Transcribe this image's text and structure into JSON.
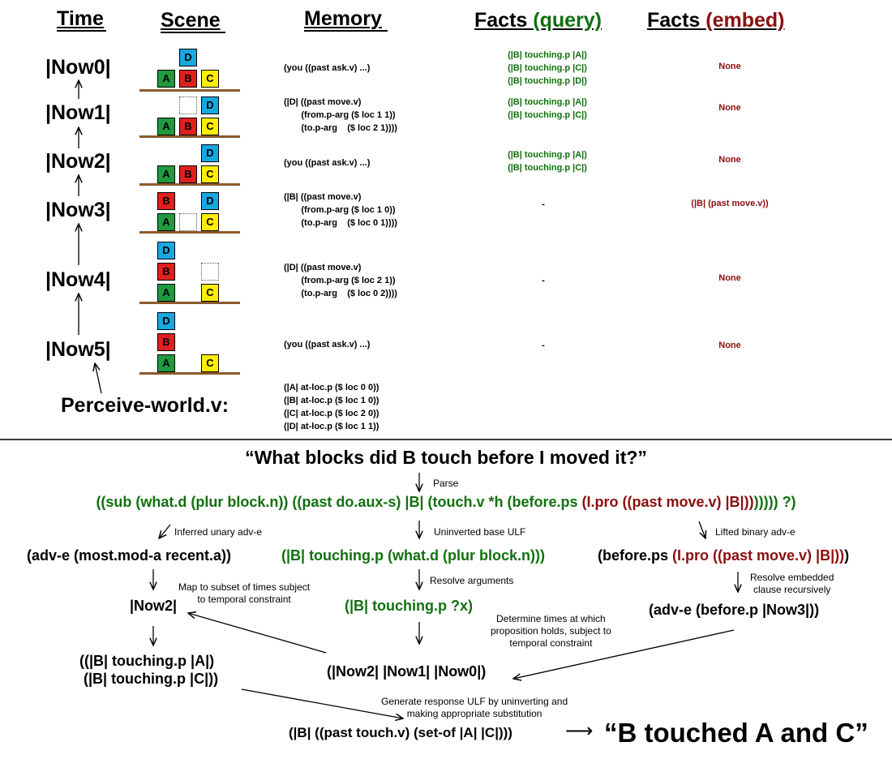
{
  "headers": {
    "time": "Time",
    "scene": "Scene",
    "memory": "Memory",
    "facts_query_a": "Facts ",
    "facts_query_b": "(query)",
    "facts_embed_a": "Facts ",
    "facts_embed_b": "(embed)"
  },
  "rows": [
    {
      "time": "|Now0|",
      "memory": "(you ((past ask.v) ...)",
      "query": "(|B| touching.p |A|)\n(|B| touching.p |C|)\n(|B| touching.p |D|)",
      "embed": "None"
    },
    {
      "time": "|Now1|",
      "memory": "(|D| ((past move.v)\n       (from.p-arg ($ loc 1 1))\n       (to.p-arg    ($ loc 2 1))))",
      "query": "(|B| touching.p |A|)\n(|B| touching.p |C|)",
      "embed": "None"
    },
    {
      "time": "|Now2|",
      "memory": "(you ((past ask.v) ...)",
      "query": "(|B| touching.p |A|)\n(|B| touching.p |C|)",
      "embed": "None"
    },
    {
      "time": "|Now3|",
      "memory": "(|B| ((past move.v)\n       (from.p-arg ($ loc 1 0))\n       (to.p-arg    ($ loc 0 1))))",
      "query": "-",
      "embed": "(|B| (past move.v))"
    },
    {
      "time": "|Now4|",
      "memory": "(|D| ((past move.v)\n       (from.p-arg ($ loc 2 1))\n       (to.p-arg    ($ loc 0 2))))",
      "query": "-",
      "embed": "None"
    },
    {
      "time": "|Now5|",
      "memory": "(you ((past ask.v) ...)",
      "query": "-",
      "embed": "None"
    }
  ],
  "blocks": {
    "A": "A",
    "B": "B",
    "C": "C",
    "D": "D"
  },
  "block_colors": {
    "A": "#1f9a3f",
    "B": "#e0201e",
    "C": "#ffee00",
    "D": "#18a8e0"
  },
  "perceive": {
    "label": "Perceive-world.v:",
    "facts": "(|A| at-loc.p ($ loc 0 0))\n(|B| at-loc.p ($ loc 1 0))\n(|C| at-loc.p ($ loc 2 0))\n(|D| at-loc.p ($ loc 1 1))"
  },
  "flow": {
    "question": "“What blocks did B touch before I moved it?”",
    "parse_label": "Parse",
    "ulf_green": "((sub (what.d (plur block.n)) ((past do.aux-s) |B| (touch.v *h (before.ps ",
    "ulf_red": "(I.pro ((past move.v) |B|))",
    "ulf_tail": "))))) ?)",
    "lbl_inferred": "Inferred unary adv-e",
    "lbl_uninverted": "Uninverted base ULF",
    "lbl_lifted": "Lifted binary adv-e",
    "adv_e": "(adv-e (most.mod-a recent.a))",
    "base_ulf": "(|B| touching.p (what.d (plur block.n)))",
    "before_a": "(before.ps ",
    "before_b": "(I.pro ((past move.v) |B|))",
    "before_c": ")",
    "lbl_map": "Map to subset of times subject\nto temporal constraint",
    "lbl_resolve_args": "Resolve arguments",
    "lbl_resolve_embedded": "Resolve embedded\nclause recursively",
    "now2": "|Now2|",
    "touching_x": "(|B| touching.p ?x)",
    "adv_before": "(adv-e (before.p |Now3|))",
    "lbl_determine": "Determine times at which\nproposition holds, subject to\ntemporal constraint",
    "result_facts": "((|B| touching.p |A|)\n (|B| touching.p |C|))",
    "times": "(|Now2| |Now1| |Now0|)",
    "lbl_generate": "Generate response ULF by uninverting and\nmaking appropriate substitution",
    "response_ulf": "(|B| ((past touch.v) (set-of |A| |C|)))",
    "arrow": "⟶",
    "answer": "“B touched A and C”"
  }
}
